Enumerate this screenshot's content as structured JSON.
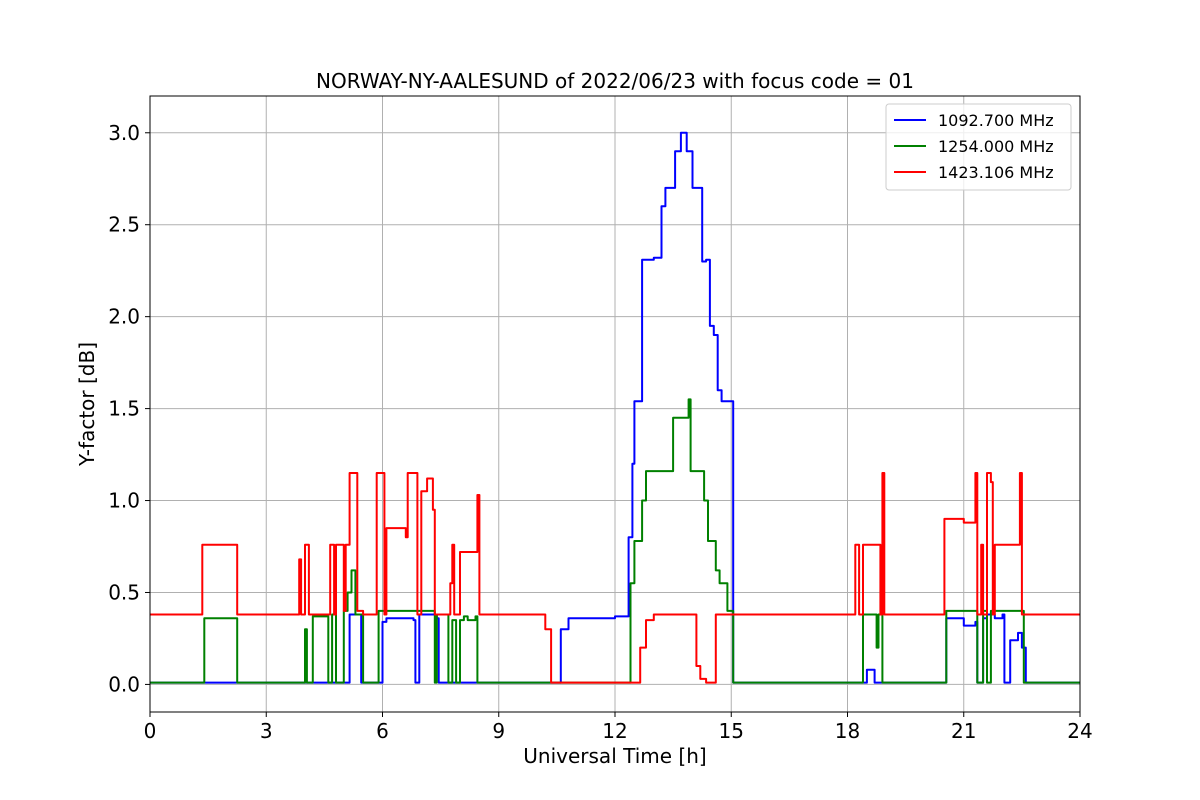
{
  "chart_data": {
    "type": "line",
    "title": "NORWAY-NY-AALESUND of 2022/06/23 with focus code = 01",
    "xlabel": "Universal Time [h]",
    "ylabel": "Y-factor [dB]",
    "xlim": [
      0,
      24
    ],
    "ylim": [
      -0.15,
      3.2
    ],
    "xticks": [
      0,
      3,
      6,
      9,
      12,
      15,
      18,
      21,
      24
    ],
    "xtick_labels": [
      "0",
      "3",
      "6",
      "9",
      "12",
      "15",
      "18",
      "21",
      "24"
    ],
    "yticks": [
      0.0,
      0.5,
      1.0,
      1.5,
      2.0,
      2.5,
      3.0
    ],
    "ytick_labels": [
      "0.0",
      "0.5",
      "1.0",
      "1.5",
      "2.0",
      "2.5",
      "3.0"
    ],
    "grid": true,
    "legend_position": "top-right",
    "series": [
      {
        "name": "1092.700 MHz",
        "color": "#0000ff",
        "x": [
          0,
          1.3,
          2.2,
          5.0,
          5.15,
          5.3,
          5.45,
          5.9,
          6.0,
          6.1,
          6.8,
          6.85,
          6.95,
          7.4,
          7.45,
          8.5,
          10.35,
          10.5,
          10.6,
          10.8,
          12.0,
          12.3,
          12.35,
          12.45,
          12.5,
          12.6,
          12.7,
          12.9,
          13.0,
          13.2,
          13.3,
          13.45,
          13.55,
          13.7,
          13.85,
          14.0,
          14.15,
          14.25,
          14.35,
          14.45,
          14.55,
          14.65,
          14.75,
          15.0,
          15.05,
          15.1,
          17.0,
          18.2,
          18.3,
          18.5,
          18.7,
          18.75,
          20.5,
          20.55,
          21.0,
          21.3,
          21.35,
          21.5,
          21.6,
          21.8,
          22.0,
          22.05,
          22.2,
          22.4,
          22.5,
          22.6,
          22.7,
          24
        ],
        "y": [
          0.01,
          0.01,
          0.01,
          0.01,
          0.38,
          0.38,
          0.01,
          0.01,
          0.34,
          0.36,
          0.35,
          0.01,
          0.38,
          0.36,
          0.01,
          0.01,
          0.01,
          0.01,
          0.3,
          0.36,
          0.37,
          0.37,
          0.8,
          1.2,
          1.54,
          1.54,
          2.31,
          2.31,
          2.32,
          2.6,
          2.7,
          2.7,
          2.9,
          3.0,
          2.9,
          2.7,
          2.7,
          2.3,
          2.31,
          1.95,
          1.9,
          1.6,
          1.54,
          1.54,
          0.01,
          0.01,
          0.01,
          0.01,
          0.01,
          0.08,
          0.01,
          0.01,
          0.01,
          0.36,
          0.32,
          0.34,
          0.01,
          0.36,
          0.38,
          0.36,
          0.38,
          0.01,
          0.24,
          0.28,
          0.2,
          0.01,
          0.01,
          0.01
        ]
      },
      {
        "name": "1254.000 MHz",
        "color": "#008000",
        "x": [
          0,
          1.3,
          1.4,
          2.2,
          2.25,
          3.9,
          4.0,
          4.05,
          4.2,
          4.6,
          4.7,
          4.8,
          5.0,
          5.1,
          5.2,
          5.3,
          5.4,
          5.5,
          5.9,
          6.0,
          6.1,
          7.3,
          7.35,
          7.4,
          7.7,
          7.8,
          7.9,
          8.0,
          8.1,
          8.2,
          8.4,
          8.45,
          12.1,
          12.3,
          12.4,
          12.5,
          12.6,
          12.7,
          12.8,
          13.0,
          13.3,
          13.5,
          13.9,
          13.95,
          14.2,
          14.3,
          14.4,
          14.5,
          14.6,
          14.7,
          14.9,
          15.0,
          15.05,
          18.0,
          18.2,
          18.4,
          18.6,
          18.75,
          18.8,
          18.9,
          20.5,
          20.55,
          21.3,
          21.35,
          21.5,
          21.6,
          21.7,
          21.8,
          22.5,
          22.55,
          24
        ],
        "y": [
          0.01,
          0.01,
          0.36,
          0.36,
          0.01,
          0.01,
          0.3,
          0.01,
          0.37,
          0.01,
          0.38,
          0.01,
          0.4,
          0.5,
          0.62,
          0.38,
          0.38,
          0.01,
          0.4,
          0.4,
          0.4,
          0.4,
          0.01,
          0.38,
          0.01,
          0.35,
          0.01,
          0.35,
          0.37,
          0.35,
          0.37,
          0.01,
          0.01,
          0.01,
          0.55,
          0.78,
          0.78,
          1.0,
          1.16,
          1.16,
          1.16,
          1.45,
          1.55,
          1.16,
          1.16,
          1.0,
          0.78,
          0.78,
          0.62,
          0.55,
          0.4,
          0.4,
          0.01,
          0.01,
          0.01,
          0.38,
          0.38,
          0.2,
          0.38,
          0.01,
          0.01,
          0.4,
          0.4,
          0.01,
          0.4,
          0.01,
          0.4,
          0.4,
          0.4,
          0.01,
          0.01
        ]
      },
      {
        "name": "1423.106 MHz",
        "color": "#ff0000",
        "x": [
          0,
          1.3,
          1.35,
          2.2,
          2.25,
          3.8,
          3.85,
          3.9,
          4.0,
          4.1,
          4.2,
          4.6,
          4.65,
          4.75,
          4.8,
          5.0,
          5.05,
          5.15,
          5.2,
          5.3,
          5.35,
          5.45,
          5.5,
          5.8,
          5.85,
          6.0,
          6.05,
          6.1,
          6.6,
          6.65,
          6.8,
          6.9,
          7.0,
          7.15,
          7.3,
          7.35,
          7.4,
          7.7,
          7.75,
          7.8,
          7.85,
          7.9,
          8.0,
          8.4,
          8.45,
          8.5,
          10.1,
          10.2,
          10.35,
          10.45,
          12.6,
          12.65,
          12.8,
          13.0,
          13.5,
          14.0,
          14.1,
          14.2,
          14.35,
          14.5,
          14.6,
          14.7,
          15.0,
          15.05,
          18.0,
          18.15,
          18.2,
          18.3,
          18.4,
          18.45,
          18.8,
          18.85,
          18.9,
          18.95,
          20.4,
          20.5,
          20.6,
          21.0,
          21.3,
          21.35,
          21.45,
          21.5,
          21.6,
          21.7,
          21.75,
          21.8,
          21.9,
          22.0,
          22.05,
          22.4,
          22.45,
          22.5,
          22.55,
          24
        ],
        "y": [
          0.38,
          0.38,
          0.76,
          0.76,
          0.38,
          0.38,
          0.68,
          0.38,
          0.76,
          0.38,
          0.38,
          0.38,
          0.76,
          0.38,
          0.76,
          0.4,
          0.76,
          1.15,
          1.15,
          1.15,
          0.4,
          0.4,
          0.38,
          0.38,
          1.15,
          1.15,
          0.38,
          0.85,
          0.8,
          1.15,
          1.15,
          0.38,
          1.05,
          1.12,
          0.95,
          0.38,
          0.38,
          0.38,
          0.55,
          0.76,
          0.38,
          0.38,
          0.72,
          0.72,
          1.03,
          0.38,
          0.38,
          0.3,
          0.01,
          0.01,
          0.01,
          0.2,
          0.35,
          0.38,
          0.38,
          0.38,
          0.1,
          0.03,
          0.01,
          0.01,
          0.38,
          0.38,
          0.38,
          0.38,
          0.38,
          0.38,
          0.76,
          0.38,
          0.76,
          0.76,
          0.76,
          0.38,
          1.15,
          0.38,
          0.38,
          0.9,
          0.9,
          0.88,
          1.15,
          0.38,
          0.76,
          0.38,
          1.15,
          1.1,
          0.38,
          0.76,
          0.76,
          0.76,
          0.76,
          0.76,
          1.15,
          0.38,
          0.38,
          0.38
        ]
      }
    ]
  }
}
